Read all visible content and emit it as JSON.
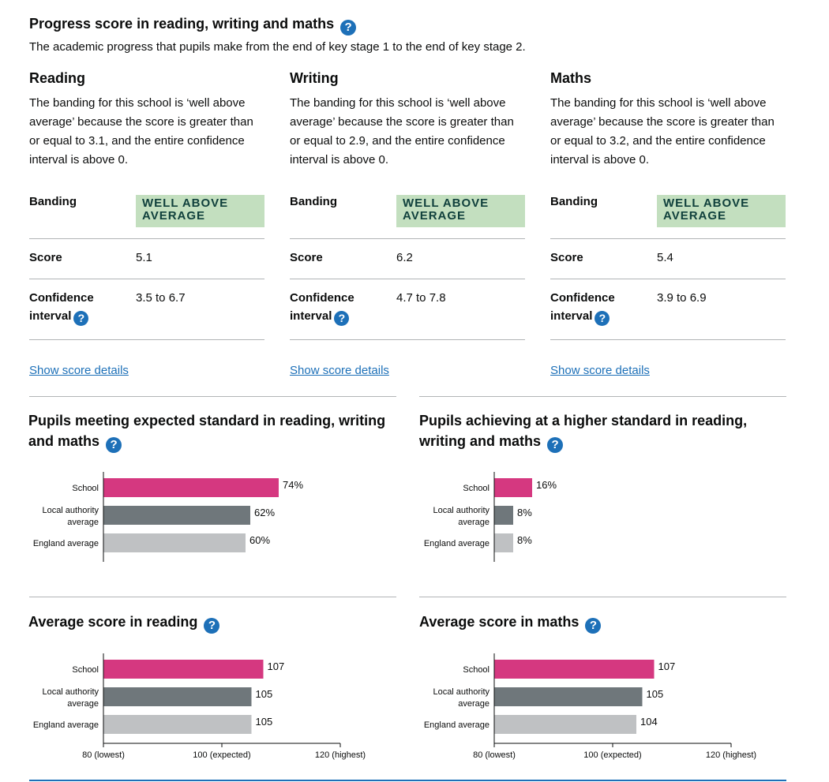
{
  "header": {
    "title": "Progress score in reading, writing and maths",
    "subtitle": "The academic progress that pupils make from the end of key stage 1 to the end of key stage 2."
  },
  "help_icon": "?",
  "labels": {
    "banding": "Banding",
    "score": "Score",
    "ci_line1": "Confidence",
    "ci_line2": "interval",
    "show_details": "Show score details"
  },
  "subjects": [
    {
      "name": "Reading",
      "description": "The banding for this school is ‘well above average’ because the score is greater than or equal to 3.1, and the entire confidence interval is above 0.",
      "banding_line1": "WELL ABOVE",
      "banding_line2": "AVERAGE",
      "score": "5.1",
      "ci": "3.5 to 6.7"
    },
    {
      "name": "Writing",
      "description": "The banding for this school is ‘well above average’ because the score is greater than or equal to 2.9, and the entire confidence interval is above 0.",
      "banding_line1": "WELL ABOVE",
      "banding_line2": "AVERAGE",
      "score": "6.2",
      "ci": "4.7 to 7.8"
    },
    {
      "name": "Maths",
      "description": "The banding for this school is ‘well above average’ because the score is greater than or equal to 3.2, and the entire confidence interval is above 0.",
      "banding_line1": "WELL ABOVE",
      "banding_line2": "AVERAGE",
      "score": "5.4",
      "ci": "3.9 to 6.9"
    }
  ],
  "sections": {
    "expected": {
      "title_line1": "Pupils meeting expected standard in reading, writing",
      "title_line2": "and maths"
    },
    "higher": {
      "title_line1": "Pupils achieving at a higher standard in reading,",
      "title_line2": "writing and maths"
    },
    "avg_reading": {
      "title": "Average score in reading"
    },
    "avg_maths": {
      "title": "Average score in maths"
    }
  },
  "colors": {
    "school": "#d53880",
    "local_authority": "#6f777b",
    "england": "#bfc1c3",
    "banding_bg": "#c3dfbf",
    "link": "#1d70b8"
  },
  "chart_data": [
    {
      "type": "bar",
      "title": "Pupils meeting expected standard in reading, writing and maths",
      "categories": [
        "School",
        "Local authority average",
        "England average"
      ],
      "values": [
        74,
        62,
        60
      ],
      "value_labels": [
        "74%",
        "62%",
        "60%"
      ],
      "xlim": [
        0,
        100
      ]
    },
    {
      "type": "bar",
      "title": "Pupils achieving at a higher standard in reading, writing and maths",
      "categories": [
        "School",
        "Local authority average",
        "England average"
      ],
      "values": [
        16,
        8,
        8
      ],
      "value_labels": [
        "16%",
        "8%",
        "8%"
      ],
      "xlim": [
        0,
        100
      ]
    },
    {
      "type": "bar",
      "title": "Average score in reading",
      "categories": [
        "School",
        "Local authority average",
        "England average"
      ],
      "values": [
        107,
        105,
        105
      ],
      "value_labels": [
        "107",
        "105",
        "105"
      ],
      "xlim": [
        80,
        120
      ],
      "ticks": [
        80,
        100,
        120
      ],
      "tick_labels": [
        "80 (lowest)",
        "100 (expected)",
        "120 (highest)"
      ]
    },
    {
      "type": "bar",
      "title": "Average score in maths",
      "categories": [
        "School",
        "Local authority average",
        "England average"
      ],
      "values": [
        107,
        105,
        104
      ],
      "value_labels": [
        "107",
        "105",
        "104"
      ],
      "xlim": [
        80,
        120
      ],
      "ticks": [
        80,
        100,
        120
      ],
      "tick_labels": [
        "80 (lowest)",
        "100 (expected)",
        "120 (highest)"
      ]
    }
  ]
}
